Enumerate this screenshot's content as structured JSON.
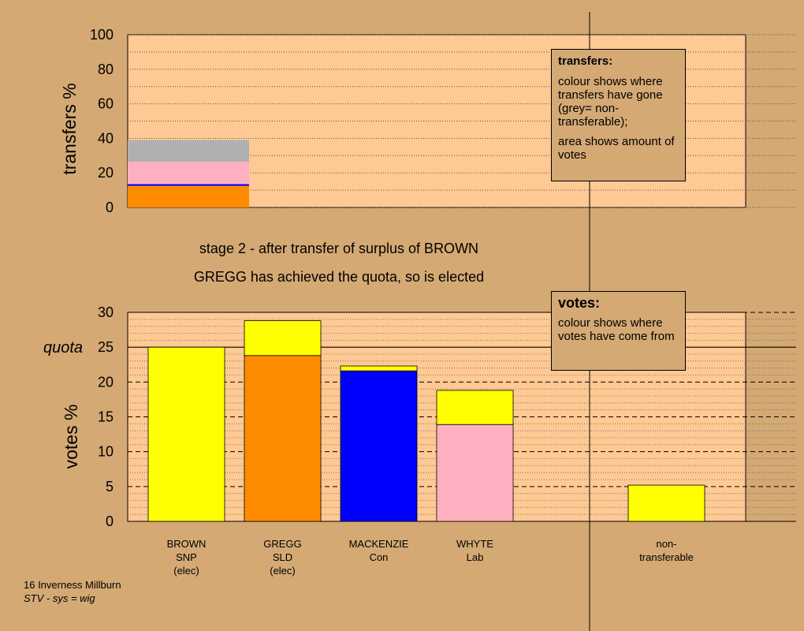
{
  "captions": {
    "line1": "stage 2 - after transfer of surplus of BROWN",
    "line2": "GREGG has achieved the quota, so is elected"
  },
  "footer": {
    "ward": "16 Inverness Millburn",
    "system": "STV - sys = wig"
  },
  "legends": {
    "transfers": {
      "title": "transfers:",
      "text1": "colour shows where transfers have gone (grey= non-transferable);",
      "text2": "area shows amount of votes"
    },
    "votes": {
      "title": "votes:",
      "text1": "colour shows where votes have come from"
    }
  },
  "colors": {
    "background": "#d4a974",
    "plot_background": "#ffc993",
    "snp": "#ffff00",
    "sld": "#ff8c00",
    "con": "#0000ff",
    "lab": "#ffb0c0",
    "nontransferable": "#b0b0b0"
  },
  "chart_data": [
    {
      "type": "bar",
      "stacked": true,
      "ylabel": "transfers %",
      "ylim": [
        0,
        100
      ],
      "yticks": [
        0,
        20,
        40,
        60,
        80,
        100
      ],
      "grid": true,
      "bars": [
        {
          "segments": [
            {
              "party": "SLD",
              "value": 12.5,
              "color": "#ff8c00"
            },
            {
              "party": "Con",
              "value": 1.0,
              "color": "#0000ff"
            },
            {
              "party": "Lab",
              "value": 13.0,
              "color": "#ffb0c0"
            },
            {
              "party": "non-transferable",
              "value": 12.5,
              "color": "#b0b0b0"
            }
          ]
        }
      ]
    },
    {
      "type": "bar",
      "stacked": true,
      "ylabel": "votes %",
      "ylim": [
        0,
        30
      ],
      "yticks": [
        0,
        5,
        10,
        15,
        20,
        25,
        30
      ],
      "quota": 25,
      "quota_label": "quota",
      "grid": true,
      "categories": [
        [
          "BROWN",
          "SNP",
          "(elec)"
        ],
        [
          "GREGG",
          "SLD",
          "(elec)"
        ],
        [
          "MACKENZIE",
          "Con"
        ],
        [
          "WHYTE",
          "Lab"
        ],
        [
          "non-",
          "transferable"
        ]
      ],
      "bars": [
        {
          "segments": [
            {
              "source": "SNP",
              "value": 25.0,
              "color": "#ffff00"
            }
          ]
        },
        {
          "segments": [
            {
              "source": "SLD",
              "value": 23.8,
              "color": "#ff8c00"
            },
            {
              "source": "SNP",
              "value": 5.0,
              "color": "#ffff00"
            }
          ]
        },
        {
          "segments": [
            {
              "source": "Con",
              "value": 21.6,
              "color": "#0000ff"
            },
            {
              "source": "SNP",
              "value": 0.7,
              "color": "#ffff00"
            }
          ]
        },
        {
          "segments": [
            {
              "source": "Lab",
              "value": 13.9,
              "color": "#ffb0c0"
            },
            {
              "source": "SNP",
              "value": 4.9,
              "color": "#ffff00"
            }
          ]
        },
        {
          "segments": [
            {
              "source": "SNP",
              "value": 5.2,
              "color": "#ffff00"
            }
          ]
        }
      ]
    }
  ]
}
